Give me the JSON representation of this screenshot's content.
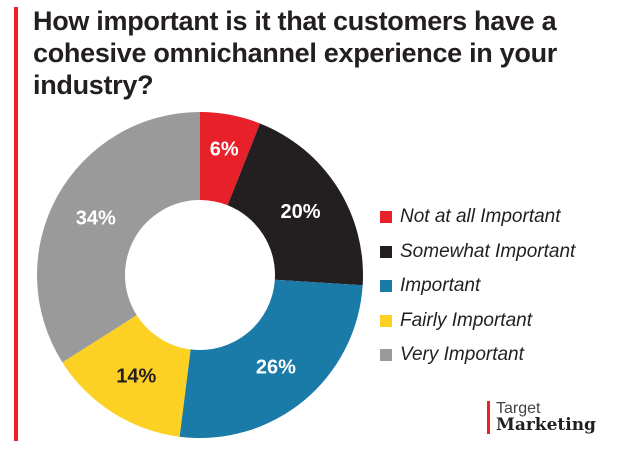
{
  "chart_data": {
    "type": "pie",
    "donut": true,
    "title": "How important is it that customers have a cohesive omnichannel experience in your industry?",
    "categories": [
      "Not at all Important",
      "Somewhat Important",
      "Important",
      "Fairly Important",
      "Very Important"
    ],
    "values": [
      6,
      20,
      26,
      14,
      34
    ],
    "labels": [
      "6%",
      "20%",
      "26%",
      "14%",
      "34%"
    ],
    "colors": [
      "#e8202a",
      "#231f20",
      "#1a7aa8",
      "#fcd124",
      "#9a9a9a"
    ],
    "legend": "right"
  },
  "brand": {
    "line1": "Target",
    "line2": "Marketing"
  }
}
